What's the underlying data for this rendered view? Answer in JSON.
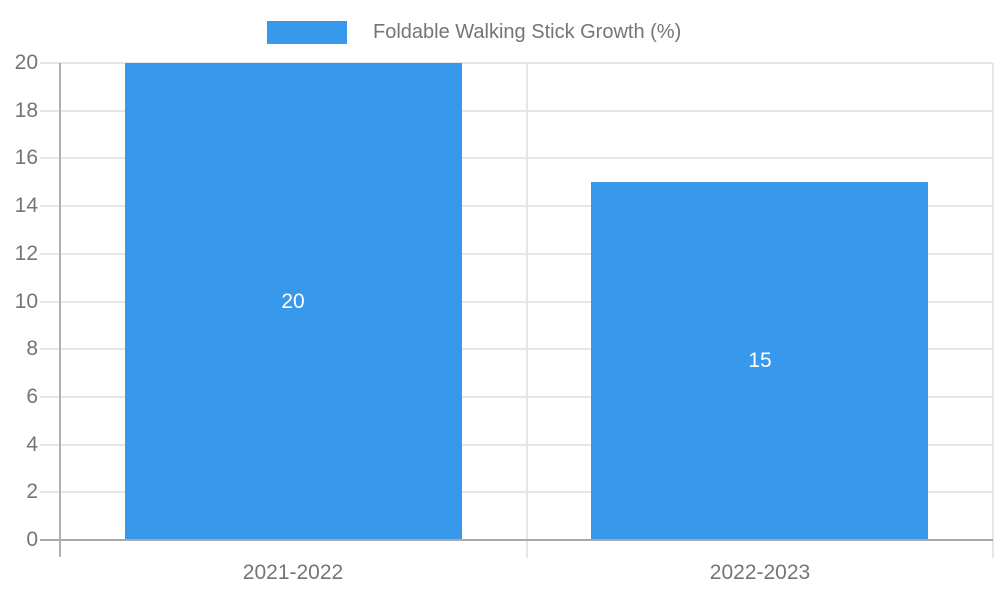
{
  "legend": {
    "label": "Foldable Walking Stick Growth (%)",
    "swatch_color": "#3899ec"
  },
  "chart_data": {
    "type": "bar",
    "title": "",
    "xlabel": "",
    "ylabel": "",
    "categories": [
      "2021-2022",
      "2022-2023"
    ],
    "series": [
      {
        "name": "Foldable Walking Stick Growth (%)",
        "values": [
          20,
          15
        ]
      }
    ],
    "value_labels": [
      "20",
      "15"
    ],
    "ylim": [
      0,
      20
    ],
    "yticks": [
      0,
      2,
      4,
      6,
      8,
      10,
      12,
      14,
      16,
      18,
      20
    ],
    "grid": true,
    "legend_position": "top"
  },
  "colors": {
    "bar": "#3899ec",
    "grid": "#e6e6e6",
    "y_axis_line": "#b0b0b0",
    "x_axis_line": "#a9a9a9",
    "tick_label": "#757575",
    "value_label": "#ffffff",
    "background": "#ffffff"
  }
}
